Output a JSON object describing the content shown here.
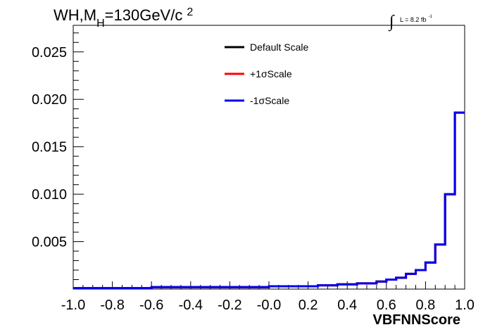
{
  "chart_data": {
    "type": "line",
    "title_parts": {
      "main": "WH,M",
      "sub": "H",
      "rest": "=130GeV/c",
      "sup": "2"
    },
    "lumi_parts": {
      "integral": "∫",
      "text": "L = 8.2 fb",
      "sup": "-1"
    },
    "xlabel": "VBFNNScore",
    "ylabel": "",
    "xlim": [
      -1.0,
      1.0
    ],
    "ylim": [
      0.0,
      0.0278
    ],
    "x_ticks": [
      -1.0,
      -0.8,
      -0.6,
      -0.4,
      -0.2,
      0.0,
      0.2,
      0.4,
      0.6,
      0.8,
      1.0
    ],
    "x_tick_labels": [
      "-1.0",
      "-0.8",
      "-0.6",
      "-0.4",
      "-0.2",
      "-0.0",
      "0.2",
      "0.4",
      "0.6",
      "0.8",
      "1.0"
    ],
    "y_ticks": [
      0.005,
      0.01,
      0.015,
      0.02,
      0.025
    ],
    "y_tick_labels": [
      "0.005",
      "0.010",
      "0.015",
      "0.020",
      "0.025"
    ],
    "bin_edges": [
      -1.0,
      -0.95,
      -0.9,
      -0.85,
      -0.8,
      -0.75,
      -0.7,
      -0.65,
      -0.6,
      -0.55,
      -0.5,
      -0.45,
      -0.4,
      -0.35,
      -0.3,
      -0.25,
      -0.2,
      -0.15,
      -0.1,
      -0.05,
      0.0,
      0.05,
      0.1,
      0.15,
      0.2,
      0.25,
      0.3,
      0.35,
      0.4,
      0.45,
      0.5,
      0.55,
      0.6,
      0.65,
      0.7,
      0.75,
      0.8,
      0.85,
      0.9,
      0.95,
      1.0
    ],
    "series": [
      {
        "name": "Default Scale",
        "color": "#000000",
        "values": [
          0.0001,
          0.0001,
          0.0001,
          0.0001,
          0.0001,
          0.0001,
          0.0001,
          0.0001,
          0.0002,
          0.0002,
          0.0002,
          0.0002,
          0.0002,
          0.0002,
          0.0002,
          0.0002,
          0.0002,
          0.0002,
          0.0002,
          0.0002,
          0.0003,
          0.0003,
          0.0003,
          0.0003,
          0.0003,
          0.0004,
          0.0004,
          0.0005,
          0.0005,
          0.0006,
          0.0006,
          0.0008,
          0.001,
          0.0012,
          0.0016,
          0.002,
          0.0028,
          0.0047,
          0.01,
          0.0186
        ]
      },
      {
        "name": "+1σScale",
        "color": "#ff0000",
        "values": [
          0.0001,
          0.0001,
          0.0001,
          0.0001,
          0.0001,
          0.0001,
          0.0001,
          0.0001,
          0.0002,
          0.0002,
          0.0002,
          0.0002,
          0.0002,
          0.0002,
          0.0002,
          0.0002,
          0.0002,
          0.0002,
          0.0002,
          0.0002,
          0.0003,
          0.0003,
          0.0003,
          0.0003,
          0.0003,
          0.0004,
          0.0004,
          0.0005,
          0.0005,
          0.0006,
          0.0006,
          0.0008,
          0.001,
          0.0012,
          0.0016,
          0.002,
          0.0028,
          0.0047,
          0.01,
          0.0186
        ]
      },
      {
        "name": "-1σScale",
        "color": "#0000ee",
        "values": [
          0.0001,
          0.0001,
          0.0001,
          0.0001,
          0.0001,
          0.0001,
          0.0001,
          0.0001,
          0.0002,
          0.0002,
          0.0002,
          0.0002,
          0.0002,
          0.0002,
          0.0002,
          0.0002,
          0.0002,
          0.0002,
          0.0002,
          0.0002,
          0.0003,
          0.0003,
          0.0003,
          0.0003,
          0.0003,
          0.0004,
          0.0004,
          0.0005,
          0.0005,
          0.0006,
          0.0006,
          0.0008,
          0.001,
          0.0012,
          0.0016,
          0.002,
          0.0028,
          0.0047,
          0.01,
          0.0186
        ]
      }
    ],
    "legend": [
      "Default Scale",
      "+1σScale",
      "-1σScale"
    ],
    "legend_placement": "top-center",
    "grid": false
  }
}
